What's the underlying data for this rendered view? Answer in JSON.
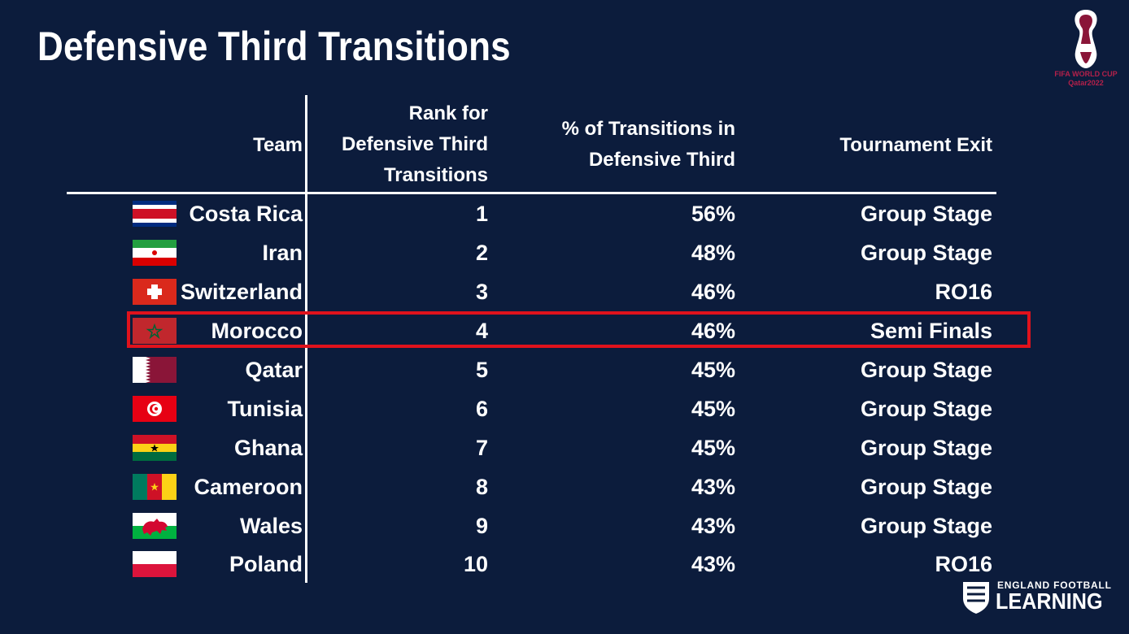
{
  "title": "Defensive Third Transitions",
  "chart_data": {
    "type": "table",
    "columns": [
      "Team",
      "Rank for Defensive Third Transitions",
      "% of Transitions in Defensive Third",
      "Tournament Exit"
    ],
    "header_lines": {
      "team": [
        "Team"
      ],
      "rank": [
        "Rank for",
        "Defensive Third",
        "Transitions"
      ],
      "pct": [
        "% of Transitions in",
        "Defensive Third"
      ],
      "exit": [
        "Tournament Exit"
      ]
    },
    "rows": [
      {
        "team": "Costa Rica",
        "rank": "1",
        "pct": "56%",
        "exit": "Group Stage"
      },
      {
        "team": "Iran",
        "rank": "2",
        "pct": "48%",
        "exit": "Group Stage"
      },
      {
        "team": "Switzerland",
        "rank": "3",
        "pct": "46%",
        "exit": "RO16"
      },
      {
        "team": "Morocco",
        "rank": "4",
        "pct": "46%",
        "exit": "Semi Finals"
      },
      {
        "team": "Qatar",
        "rank": "5",
        "pct": "45%",
        "exit": "Group Stage"
      },
      {
        "team": "Tunisia",
        "rank": "6",
        "pct": "45%",
        "exit": "Group Stage"
      },
      {
        "team": "Ghana",
        "rank": "7",
        "pct": "45%",
        "exit": "Group Stage"
      },
      {
        "team": "Cameroon",
        "rank": "8",
        "pct": "43%",
        "exit": "Group Stage"
      },
      {
        "team": "Wales",
        "rank": "9",
        "pct": "43%",
        "exit": "Group Stage"
      },
      {
        "team": "Poland",
        "rank": "10",
        "pct": "43%",
        "exit": "RO16"
      }
    ],
    "highlighted_row": "Morocco",
    "highlight_color": "#e0121c"
  },
  "logos": {
    "world_cup": {
      "line1": "FIFA WORLD CUP",
      "line2": "Qatar2022"
    },
    "efl": {
      "line1": "ENGLAND FOOTBALL",
      "line2": "LEARNING"
    }
  },
  "colors": {
    "background": "#0c1c3c",
    "text": "#ffffff"
  }
}
